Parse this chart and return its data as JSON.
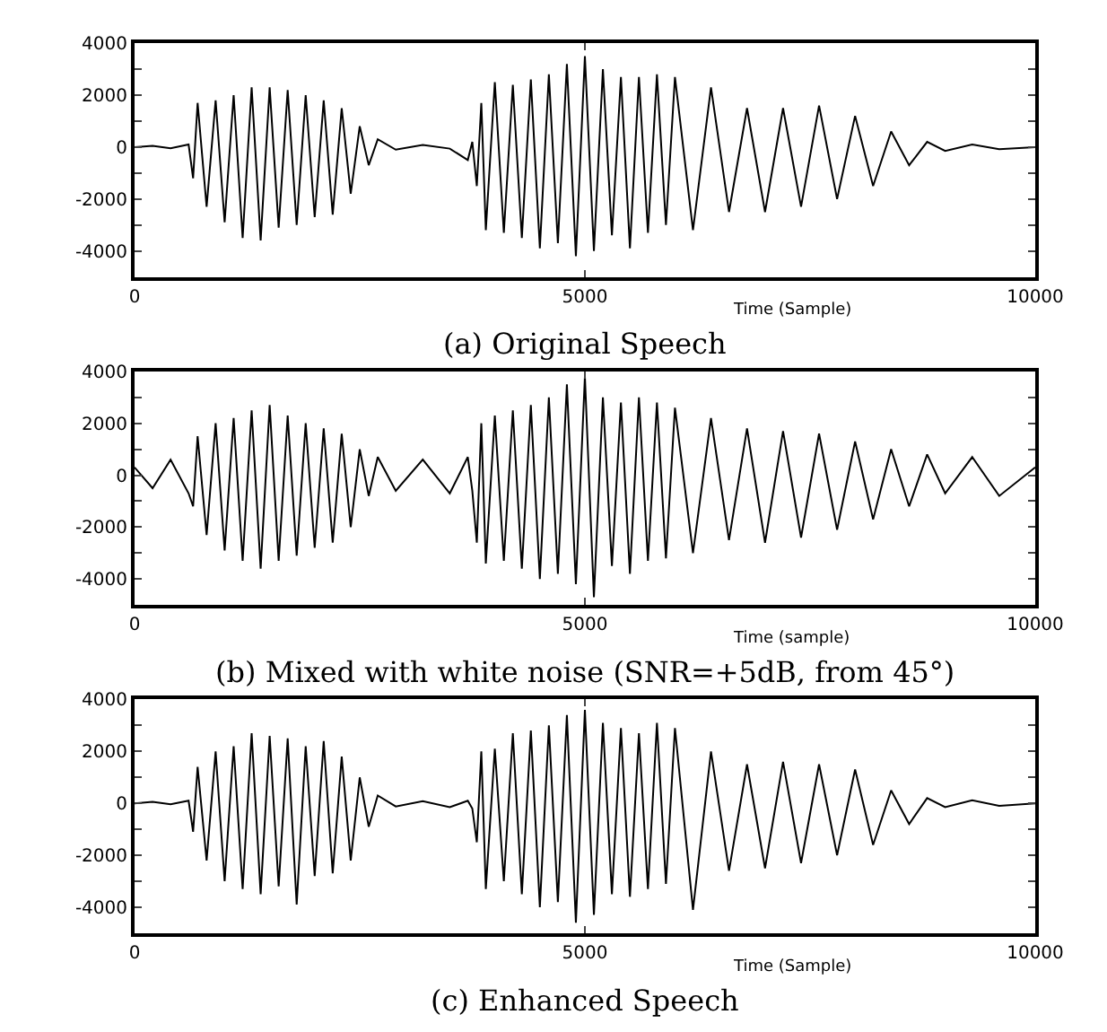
{
  "chart_data": [
    {
      "type": "line",
      "title": "(a) Original Speech",
      "xlabel": "Time (Sample)",
      "color": "#000000",
      "xlim": [
        0,
        10000
      ],
      "ylim": [
        -5000,
        4000
      ],
      "xticks": [
        0,
        5000,
        10000
      ],
      "yticks": [
        -4000,
        {
          "value": -3000,
          "label": null
        },
        -2000,
        {
          "value": -1000,
          "label": null
        },
        0,
        {
          "value": 1000,
          "label": null
        },
        2000,
        {
          "value": 3000,
          "label": null
        },
        4000
      ],
      "x": [
        0,
        200,
        400,
        600,
        650,
        700,
        800,
        900,
        1000,
        1100,
        1200,
        1300,
        1400,
        1500,
        1600,
        1700,
        1800,
        1900,
        2000,
        2100,
        2200,
        2300,
        2400,
        2500,
        2600,
        2700,
        2900,
        3200,
        3500,
        3700,
        3750,
        3800,
        3850,
        3900,
        4000,
        4100,
        4200,
        4300,
        4400,
        4500,
        4600,
        4700,
        4800,
        4900,
        5000,
        5100,
        5200,
        5300,
        5400,
        5500,
        5600,
        5700,
        5800,
        5900,
        6000,
        6200,
        6400,
        6600,
        6800,
        7000,
        7200,
        7400,
        7600,
        7800,
        8000,
        8200,
        8400,
        8600,
        8800,
        9000,
        9300,
        9600,
        10000
      ],
      "values": [
        0,
        50,
        -50,
        100,
        -1200,
        1700,
        -2300,
        1800,
        -2900,
        2000,
        -3500,
        2300,
        -3600,
        2300,
        -3100,
        2200,
        -3000,
        2000,
        -2700,
        1800,
        -2600,
        1500,
        -1800,
        800,
        -700,
        300,
        -100,
        80,
        -60,
        -500,
        200,
        -1500,
        1700,
        -3200,
        2500,
        -3300,
        2400,
        -3500,
        2600,
        -3900,
        2800,
        -3700,
        3200,
        -4200,
        3500,
        -4000,
        3000,
        -3400,
        2700,
        -3900,
        2700,
        -3300,
        2800,
        -3000,
        2700,
        -3200,
        2300,
        -2500,
        1500,
        -2500,
        1500,
        -2300,
        1600,
        -2000,
        1200,
        -1500,
        600,
        -700,
        200,
        -150,
        100,
        -80,
        0
      ]
    },
    {
      "type": "line",
      "title": "(b) Mixed with white noise (SNR=+5dB, from 45°)",
      "xlabel": "Time (sample)",
      "color": "#000000",
      "xlim": [
        0,
        10000
      ],
      "ylim": [
        -5000,
        4000
      ],
      "xticks": [
        0,
        5000,
        10000
      ],
      "yticks": [
        -4000,
        {
          "value": -3000,
          "label": null
        },
        -2000,
        {
          "value": -1000,
          "label": null
        },
        0,
        {
          "value": 1000,
          "label": null
        },
        2000,
        {
          "value": 3000,
          "label": null
        },
        4000
      ],
      "x": [
        0,
        200,
        400,
        600,
        650,
        700,
        800,
        900,
        1000,
        1100,
        1200,
        1300,
        1400,
        1500,
        1600,
        1700,
        1800,
        1900,
        2000,
        2100,
        2200,
        2300,
        2400,
        2500,
        2600,
        2700,
        2900,
        3200,
        3500,
        3700,
        3750,
        3800,
        3850,
        3900,
        4000,
        4100,
        4200,
        4300,
        4400,
        4500,
        4600,
        4700,
        4800,
        4900,
        5000,
        5100,
        5200,
        5300,
        5400,
        5500,
        5600,
        5700,
        5800,
        5900,
        6000,
        6200,
        6400,
        6600,
        6800,
        7000,
        7200,
        7400,
        7600,
        7800,
        8000,
        8200,
        8400,
        8600,
        8800,
        9000,
        9300,
        9600,
        10000
      ],
      "values": [
        300,
        -500,
        600,
        -700,
        -1200,
        1500,
        -2300,
        2000,
        -2900,
        2200,
        -3300,
        2500,
        -3600,
        2700,
        -3300,
        2300,
        -3100,
        2000,
        -2800,
        1800,
        -2600,
        1600,
        -2000,
        1000,
        -800,
        700,
        -600,
        600,
        -700,
        700,
        -600,
        -2600,
        2000,
        -3400,
        2300,
        -3300,
        2500,
        -3600,
        2700,
        -4000,
        3000,
        -3800,
        3500,
        -4200,
        3800,
        -4700,
        3000,
        -3500,
        2800,
        -3800,
        3000,
        -3300,
        2800,
        -3200,
        2600,
        -3000,
        2200,
        -2500,
        1800,
        -2600,
        1700,
        -2400,
        1600,
        -2100,
        1300,
        -1700,
        1000,
        -1200,
        800,
        -700,
        700,
        -800,
        300
      ]
    },
    {
      "type": "line",
      "title": "(c) Enhanced Speech",
      "xlabel": "Time (Sample)",
      "color": "#000000",
      "xlim": [
        0,
        10000
      ],
      "ylim": [
        -5000,
        4000
      ],
      "xticks": [
        0,
        5000,
        10000
      ],
      "yticks": [
        -4000,
        {
          "value": -3000,
          "label": null
        },
        -2000,
        {
          "value": -1000,
          "label": null
        },
        0,
        {
          "value": 1000,
          "label": null
        },
        2000,
        {
          "value": 3000,
          "label": null
        },
        4000
      ],
      "x": [
        0,
        200,
        400,
        600,
        650,
        700,
        800,
        900,
        1000,
        1100,
        1200,
        1300,
        1400,
        1500,
        1600,
        1700,
        1800,
        1900,
        2000,
        2100,
        2200,
        2300,
        2400,
        2500,
        2600,
        2700,
        2900,
        3200,
        3500,
        3700,
        3750,
        3800,
        3850,
        3900,
        4000,
        4100,
        4200,
        4300,
        4400,
        4500,
        4600,
        4700,
        4800,
        4900,
        5000,
        5100,
        5200,
        5300,
        5400,
        5500,
        5600,
        5700,
        5800,
        5900,
        6000,
        6200,
        6400,
        6600,
        6800,
        7000,
        7200,
        7400,
        7600,
        7800,
        8000,
        8200,
        8400,
        8600,
        8800,
        9000,
        9300,
        9600,
        10000
      ],
      "values": [
        0,
        60,
        -40,
        100,
        -1100,
        1400,
        -2200,
        2000,
        -3000,
        2200,
        -3300,
        2700,
        -3500,
        2600,
        -3200,
        2500,
        -3900,
        2200,
        -2800,
        2400,
        -2700,
        1800,
        -2200,
        1000,
        -900,
        300,
        -120,
        80,
        -150,
        100,
        -200,
        -1500,
        2000,
        -3300,
        2100,
        -3000,
        2700,
        -3500,
        2800,
        -4000,
        3000,
        -3800,
        3400,
        -4600,
        3600,
        -4300,
        3100,
        -3500,
        2900,
        -3600,
        2700,
        -3300,
        3100,
        -3100,
        2900,
        -4100,
        2000,
        -2600,
        1500,
        -2500,
        1600,
        -2300,
        1500,
        -2000,
        1300,
        -1600,
        500,
        -800,
        200,
        -150,
        120,
        -100,
        0
      ]
    }
  ]
}
